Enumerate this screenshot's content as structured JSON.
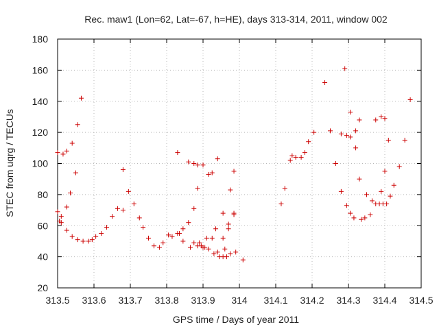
{
  "chart_data": {
    "type": "scatter",
    "title": "Rec. maw1 (Lon=62, Lat=-67, h=HE), days 313-314, 2011, window 002",
    "xlabel": "GPS time / Days of year 2011",
    "ylabel": "STEC from uqrg / TECUs",
    "xlim": [
      313.5,
      314.5
    ],
    "ylim": [
      20,
      180
    ],
    "x_ticks": [
      313.5,
      313.6,
      313.7,
      313.8,
      313.9,
      314.0,
      314.1,
      314.2,
      314.3,
      314.4,
      314.5
    ],
    "x_tick_labels": [
      "313.5",
      "313.6",
      "313.7",
      "313.8",
      "313.9",
      "314",
      "314.1",
      "314.2",
      "314.3",
      "314.4",
      "314.5"
    ],
    "y_ticks": [
      20,
      40,
      60,
      80,
      100,
      120,
      140,
      160,
      180
    ],
    "y_tick_labels": [
      "20",
      "40",
      "60",
      "80",
      "100",
      "120",
      "140",
      "160",
      "180"
    ],
    "grid": true,
    "marker": "+",
    "marker_color": "#cc0000",
    "points": [
      [
        313.5,
        107
      ],
      [
        313.5,
        69
      ],
      [
        313.505,
        63
      ],
      [
        313.51,
        62
      ],
      [
        313.51,
        66
      ],
      [
        313.515,
        106
      ],
      [
        313.525,
        108
      ],
      [
        313.525,
        72
      ],
      [
        313.525,
        57
      ],
      [
        313.535,
        81
      ],
      [
        313.54,
        113
      ],
      [
        313.54,
        53
      ],
      [
        313.55,
        94
      ],
      [
        313.555,
        125
      ],
      [
        313.555,
        51
      ],
      [
        313.565,
        142
      ],
      [
        313.57,
        50
      ],
      [
        313.585,
        50
      ],
      [
        313.595,
        51
      ],
      [
        313.605,
        53
      ],
      [
        313.62,
        55
      ],
      [
        313.635,
        59
      ],
      [
        313.65,
        66
      ],
      [
        313.665,
        71
      ],
      [
        313.68,
        96
      ],
      [
        313.68,
        70
      ],
      [
        313.695,
        82
      ],
      [
        313.71,
        74
      ],
      [
        313.725,
        65
      ],
      [
        313.735,
        59
      ],
      [
        313.75,
        52
      ],
      [
        313.765,
        47
      ],
      [
        313.78,
        46
      ],
      [
        313.79,
        49
      ],
      [
        313.805,
        54
      ],
      [
        313.815,
        53
      ],
      [
        313.83,
        55
      ],
      [
        313.83,
        107
      ],
      [
        313.835,
        55
      ],
      [
        313.845,
        50
      ],
      [
        313.845,
        58
      ],
      [
        313.86,
        101
      ],
      [
        313.86,
        62
      ],
      [
        313.865,
        46
      ],
      [
        313.875,
        100
      ],
      [
        313.875,
        71
      ],
      [
        313.875,
        49
      ],
      [
        313.885,
        84
      ],
      [
        313.885,
        99
      ],
      [
        313.885,
        47
      ],
      [
        313.89,
        49
      ],
      [
        313.895,
        47
      ],
      [
        313.9,
        99
      ],
      [
        313.9,
        46
      ],
      [
        313.905,
        46
      ],
      [
        313.91,
        52
      ],
      [
        313.915,
        93
      ],
      [
        313.915,
        45
      ],
      [
        313.925,
        94
      ],
      [
        313.925,
        52
      ],
      [
        313.93,
        42
      ],
      [
        313.935,
        58
      ],
      [
        313.94,
        103
      ],
      [
        313.94,
        43
      ],
      [
        313.945,
        40
      ],
      [
        313.955,
        40
      ],
      [
        313.955,
        68
      ],
      [
        313.955,
        52
      ],
      [
        313.96,
        45
      ],
      [
        313.965,
        40
      ],
      [
        313.97,
        61
      ],
      [
        313.97,
        58
      ],
      [
        313.975,
        83
      ],
      [
        313.975,
        42
      ],
      [
        313.985,
        95
      ],
      [
        313.985,
        68
      ],
      [
        313.985,
        67
      ],
      [
        313.99,
        43
      ],
      [
        314.01,
        38
      ],
      [
        314.115,
        74
      ],
      [
        314.125,
        84
      ],
      [
        314.14,
        102
      ],
      [
        314.145,
        105
      ],
      [
        314.155,
        104
      ],
      [
        314.17,
        104
      ],
      [
        314.18,
        107
      ],
      [
        314.19,
        114
      ],
      [
        314.205,
        120
      ],
      [
        314.235,
        152
      ],
      [
        314.25,
        121
      ],
      [
        314.265,
        100
      ],
      [
        314.28,
        119
      ],
      [
        314.28,
        82
      ],
      [
        314.29,
        161
      ],
      [
        314.295,
        118
      ],
      [
        314.295,
        73
      ],
      [
        314.305,
        133
      ],
      [
        314.305,
        117
      ],
      [
        314.305,
        68
      ],
      [
        314.315,
        65
      ],
      [
        314.32,
        121
      ],
      [
        314.32,
        110
      ],
      [
        314.33,
        128
      ],
      [
        314.33,
        90
      ],
      [
        314.335,
        64
      ],
      [
        314.345,
        65
      ],
      [
        314.35,
        80
      ],
      [
        314.36,
        67
      ],
      [
        314.365,
        76
      ],
      [
        314.375,
        128
      ],
      [
        314.375,
        74
      ],
      [
        314.385,
        74
      ],
      [
        314.39,
        130
      ],
      [
        314.39,
        82
      ],
      [
        314.395,
        74
      ],
      [
        314.4,
        129
      ],
      [
        314.4,
        95
      ],
      [
        314.405,
        74
      ],
      [
        314.41,
        115
      ],
      [
        314.415,
        79
      ],
      [
        314.425,
        86
      ],
      [
        314.44,
        98
      ],
      [
        314.455,
        115
      ],
      [
        314.47,
        141
      ]
    ]
  }
}
